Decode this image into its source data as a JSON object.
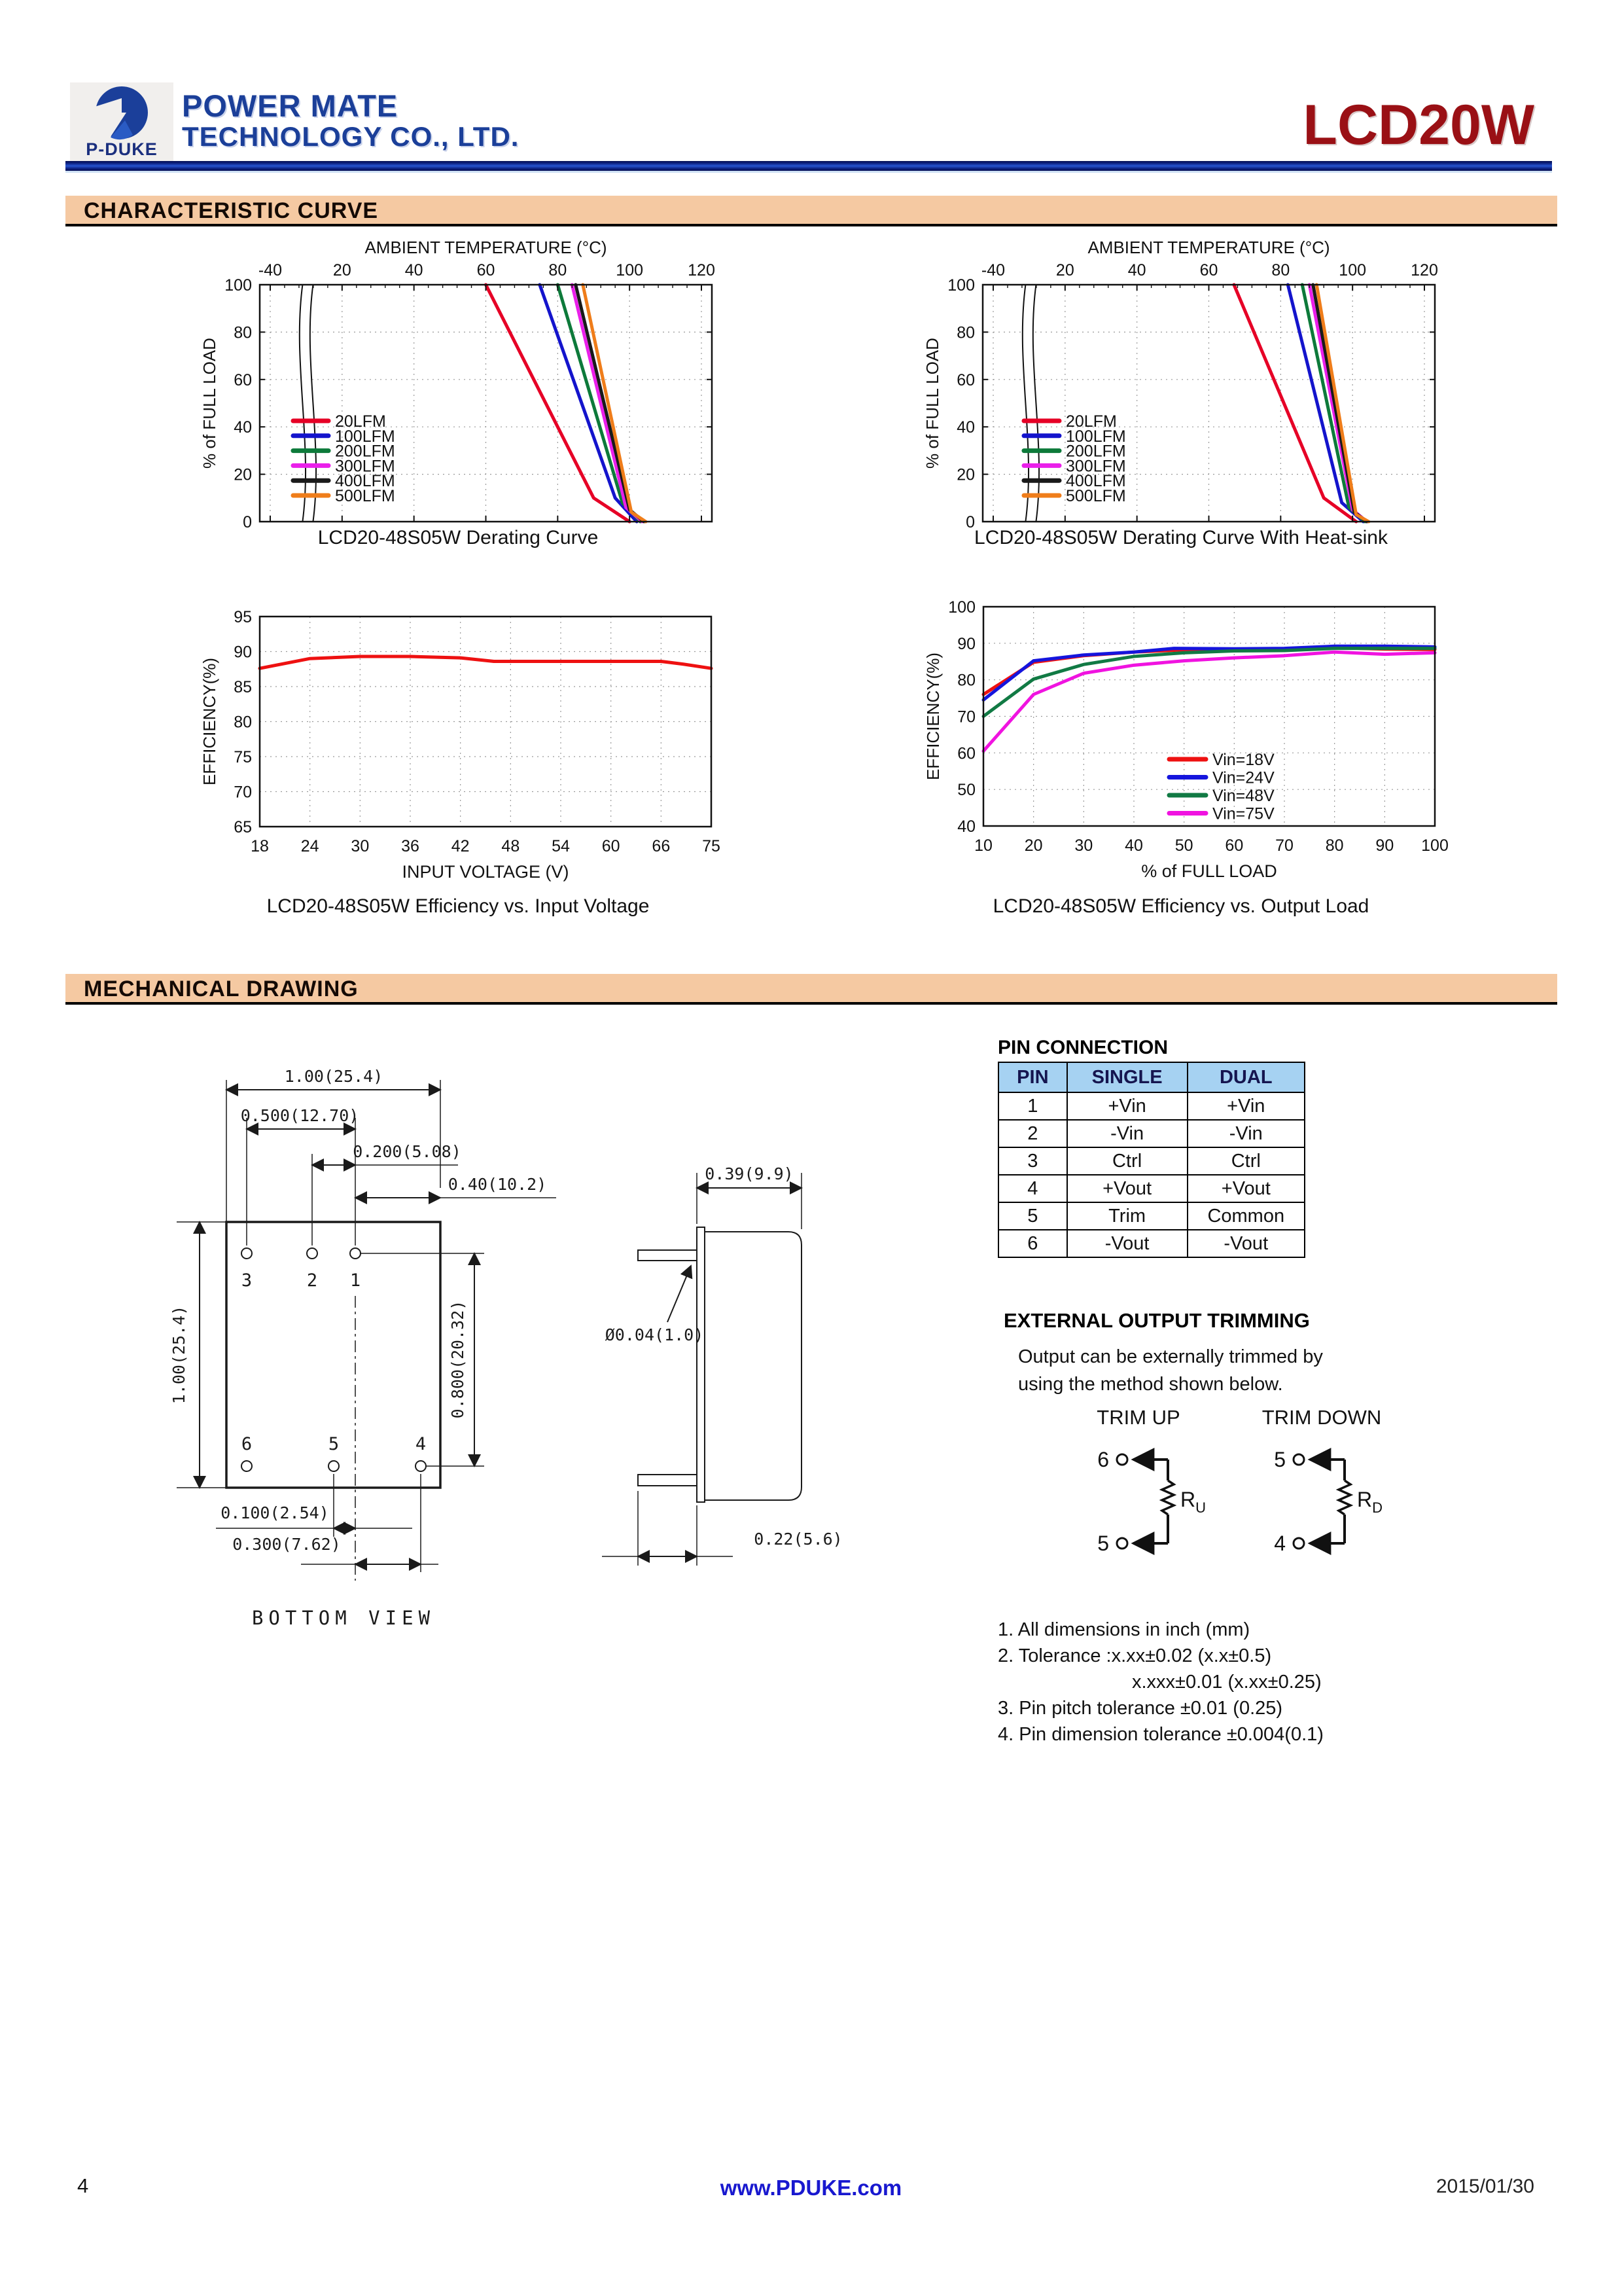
{
  "header": {
    "logo_text": "P-DUKE",
    "company_line1": "POWER MATE",
    "company_line2": "TECHNOLOGY CO., LTD.",
    "product": "LCD20W",
    "brand_blue": "#1b3f99",
    "product_red": "#9a1015"
  },
  "sections": {
    "characteristic": "CHARACTERISTIC CURVE",
    "mechanical": "MECHANICAL DRAWING"
  },
  "chart_data": [
    {
      "type": "line",
      "name": "derating-curve",
      "title": "AMBIENT TEMPERATURE (°C)",
      "title_position": "top",
      "xlabel": "",
      "ylabel": "% of FULL LOAD",
      "x_ticks": [
        -40,
        20,
        40,
        60,
        80,
        100,
        120
      ],
      "y_ticks": [
        0,
        20,
        40,
        60,
        80,
        100
      ],
      "ylim": [
        0,
        100
      ],
      "axis_break_after_first_tick": true,
      "grid": true,
      "legend_position": "inside-left-bottom",
      "series": [
        {
          "name": "20LFM",
          "color": "#e60026",
          "points": [
            [
              60,
              100
            ],
            [
              90,
              10
            ],
            [
              100,
              0
            ]
          ]
        },
        {
          "name": "100LFM",
          "color": "#1414cc",
          "points": [
            [
              75,
              100
            ],
            [
              96,
              10
            ],
            [
              102,
              0
            ]
          ]
        },
        {
          "name": "200LFM",
          "color": "#0d7a3a",
          "points": [
            [
              80,
              100
            ],
            [
              98,
              8
            ],
            [
              103,
              0
            ]
          ]
        },
        {
          "name": "300LFM",
          "color": "#ea1fea",
          "points": [
            [
              84,
              100
            ],
            [
              99,
              6
            ],
            [
              103.5,
              0
            ]
          ]
        },
        {
          "name": "400LFM",
          "color": "#1a1a1a",
          "points": [
            [
              85,
              100
            ],
            [
              100,
              5
            ],
            [
              104,
              0
            ]
          ]
        },
        {
          "name": "500LFM",
          "color": "#ef7d1a",
          "points": [
            [
              87,
              100
            ],
            [
              100.5,
              4
            ],
            [
              104.5,
              0
            ]
          ]
        }
      ],
      "caption": "LCD20-48S05W Derating Curve"
    },
    {
      "type": "line",
      "name": "derating-curve-heatsink",
      "title": "AMBIENT TEMPERATURE (°C)",
      "title_position": "top",
      "xlabel": "",
      "ylabel": "% of FULL LOAD",
      "x_ticks": [
        -40,
        20,
        40,
        60,
        80,
        100,
        120
      ],
      "y_ticks": [
        0,
        20,
        40,
        60,
        80,
        100
      ],
      "ylim": [
        0,
        100
      ],
      "axis_break_after_first_tick": true,
      "grid": true,
      "legend_position": "inside-left-bottom",
      "series": [
        {
          "name": "20LFM",
          "color": "#e60026",
          "points": [
            [
              67,
              100
            ],
            [
              92,
              10
            ],
            [
              101,
              0
            ]
          ]
        },
        {
          "name": "100LFM",
          "color": "#1414cc",
          "points": [
            [
              82,
              100
            ],
            [
              97,
              8
            ],
            [
              103,
              0
            ]
          ]
        },
        {
          "name": "200LFM",
          "color": "#0d7a3a",
          "points": [
            [
              86,
              100
            ],
            [
              99,
              6
            ],
            [
              103.5,
              0
            ]
          ]
        },
        {
          "name": "300LFM",
          "color": "#ea1fea",
          "points": [
            [
              88,
              100
            ],
            [
              100,
              5
            ],
            [
              104,
              0
            ]
          ]
        },
        {
          "name": "400LFM",
          "color": "#1a1a1a",
          "points": [
            [
              89,
              100
            ],
            [
              100.5,
              4
            ],
            [
              104,
              0
            ]
          ]
        },
        {
          "name": "500LFM",
          "color": "#ef7d1a",
          "points": [
            [
              90,
              100
            ],
            [
              101,
              3
            ],
            [
              104.5,
              0
            ]
          ]
        }
      ],
      "caption": "LCD20-48S05W Derating Curve With Heat-sink"
    },
    {
      "type": "line",
      "name": "efficiency-vs-input-voltage",
      "title": "",
      "xlabel": "INPUT VOLTAGE (V)",
      "ylabel": "EFFICIENCY(%)",
      "x_ticks": [
        18,
        24,
        30,
        36,
        42,
        48,
        54,
        60,
        66,
        75
      ],
      "y_ticks": [
        65,
        70,
        75,
        80,
        85,
        90,
        95
      ],
      "ylim": [
        65,
        95
      ],
      "grid": true,
      "series": [
        {
          "name": "Efficiency",
          "color": "#ee1111",
          "points": [
            [
              18,
              87.6
            ],
            [
              24,
              89.0
            ],
            [
              30,
              89.3
            ],
            [
              36,
              89.3
            ],
            [
              42,
              89.1
            ],
            [
              46,
              88.6
            ],
            [
              54,
              88.6
            ],
            [
              60,
              88.6
            ],
            [
              66,
              88.6
            ],
            [
              70,
              88.2
            ],
            [
              75,
              87.6
            ]
          ]
        }
      ],
      "caption": "LCD20-48S05W Efficiency vs. Input Voltage"
    },
    {
      "type": "line",
      "name": "efficiency-vs-output-load",
      "title": "",
      "xlabel": "% of FULL LOAD",
      "ylabel": "EFFICIENCY(%)",
      "x_ticks": [
        10,
        20,
        30,
        40,
        50,
        60,
        70,
        80,
        90,
        100
      ],
      "y_ticks": [
        40,
        50,
        60,
        70,
        80,
        90,
        100
      ],
      "ylim": [
        40,
        100
      ],
      "grid": true,
      "legend_position": "inside-right-bottom",
      "series": [
        {
          "name": "Vin=18V",
          "color": "#ee1111",
          "points": [
            [
              10,
              76
            ],
            [
              20,
              84.8
            ],
            [
              30,
              86.6
            ],
            [
              40,
              87.6
            ],
            [
              50,
              88.2
            ],
            [
              55,
              88.3
            ],
            [
              60,
              88.0
            ],
            [
              70,
              88.3
            ],
            [
              80,
              88.8
            ],
            [
              90,
              88.4
            ],
            [
              100,
              88.3
            ]
          ]
        },
        {
          "name": "Vin=24V",
          "color": "#1515dd",
          "points": [
            [
              10,
              74.5
            ],
            [
              20,
              85.2
            ],
            [
              30,
              86.8
            ],
            [
              40,
              87.6
            ],
            [
              48,
              88.6
            ],
            [
              60,
              88.5
            ],
            [
              70,
              88.6
            ],
            [
              80,
              89.2
            ],
            [
              90,
              89.2
            ],
            [
              100,
              89.0
            ]
          ]
        },
        {
          "name": "Vin=48V",
          "color": "#117a44",
          "points": [
            [
              10,
              70
            ],
            [
              20,
              80.2
            ],
            [
              30,
              84.2
            ],
            [
              40,
              86.4
            ],
            [
              50,
              87.4
            ],
            [
              60,
              87.9
            ],
            [
              70,
              88.0
            ],
            [
              80,
              88.6
            ],
            [
              90,
              88.6
            ],
            [
              100,
              88.6
            ]
          ]
        },
        {
          "name": "Vin=75V",
          "color": "#f013e0",
          "points": [
            [
              10,
              60.5
            ],
            [
              20,
              76
            ],
            [
              30,
              81.8
            ],
            [
              40,
              84
            ],
            [
              50,
              85.2
            ],
            [
              60,
              86
            ],
            [
              70,
              86.6
            ],
            [
              80,
              87.6
            ],
            [
              90,
              87
            ],
            [
              100,
              87.4
            ]
          ]
        }
      ],
      "caption": "LCD20-48S05W Efficiency vs. Output Load"
    }
  ],
  "pin_connection": {
    "title": "PIN CONNECTION",
    "header_bg": "#a6d2f2",
    "headers": [
      "PIN",
      "SINGLE",
      "DUAL"
    ],
    "rows": [
      [
        "1",
        "+Vin",
        "+Vin"
      ],
      [
        "2",
        "-Vin",
        "-Vin"
      ],
      [
        "3",
        "Ctrl",
        "Ctrl"
      ],
      [
        "4",
        "+Vout",
        "+Vout"
      ],
      [
        "5",
        "Trim",
        "Common"
      ],
      [
        "6",
        "-Vout",
        "-Vout"
      ]
    ]
  },
  "trimming": {
    "title": "EXTERNAL OUTPUT TRIMMING",
    "desc1": "Output can be externally trimmed by",
    "desc2": "using the method shown below.",
    "trim_up": {
      "label": "TRIM UP",
      "top_pin": "6",
      "bottom_pin": "5",
      "resistor": "R",
      "resistor_sub": "U"
    },
    "trim_down": {
      "label": "TRIM DOWN",
      "top_pin": "5",
      "bottom_pin": "4",
      "resistor": "R",
      "resistor_sub": "D"
    }
  },
  "notes": [
    "1. All dimensions in inch (mm)",
    "2. Tolerance :x.xx±0.02 (x.x±0.5)",
    "x.xxx±0.01 (x.xx±0.25)",
    "3. Pin pitch tolerance ±0.01 (0.25)",
    "4. Pin dimension tolerance ±0.004(0.1)"
  ],
  "mech": {
    "bottom_view_label": "BOTTOM VIEW",
    "pins_top": [
      "3",
      "2",
      "1"
    ],
    "pins_bottom": [
      "6",
      "5",
      "4"
    ],
    "dims": {
      "width": "1.00(25.4)",
      "pin_row_span": "0.500(12.70)",
      "pin_pitch": "0.200(5.08)",
      "pin_to_edge": "0.40(10.2)",
      "height": "1.00(25.4)",
      "row_gap": "0.800(20.32)",
      "pin5_offset": "0.100(2.54)",
      "pin4_offset": "0.300(7.62)",
      "case_depth": "0.39(9.9)",
      "pin_dia": "Ø0.04(1.0)",
      "pin_len": "0.22(5.6)"
    }
  },
  "footer": {
    "page_number": "4",
    "website": "www.PDUKE.com",
    "date": "2015/01/30"
  }
}
